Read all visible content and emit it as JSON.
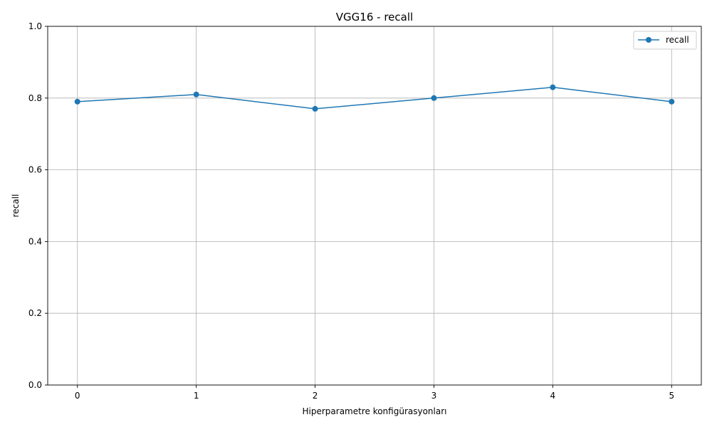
{
  "chart_data": {
    "type": "line",
    "title": "VGG16 - recall",
    "xlabel": "Hiperparametre konfigürasyonları",
    "ylabel": "recall",
    "x": [
      0,
      1,
      2,
      3,
      4,
      5
    ],
    "xticks": [
      "0",
      "1",
      "2",
      "3",
      "4",
      "5"
    ],
    "xlim": [
      -0.25,
      5.25
    ],
    "yticks": [
      "0.0",
      "0.2",
      "0.4",
      "0.6",
      "0.8",
      "1.0"
    ],
    "ylim": [
      0,
      1
    ],
    "series": [
      {
        "name": "recall",
        "values": [
          0.79,
          0.81,
          0.77,
          0.8,
          0.83,
          0.79
        ],
        "color": "#1f77b4",
        "marker": "circle"
      }
    ],
    "grid": true,
    "legend_position": "top-right"
  }
}
